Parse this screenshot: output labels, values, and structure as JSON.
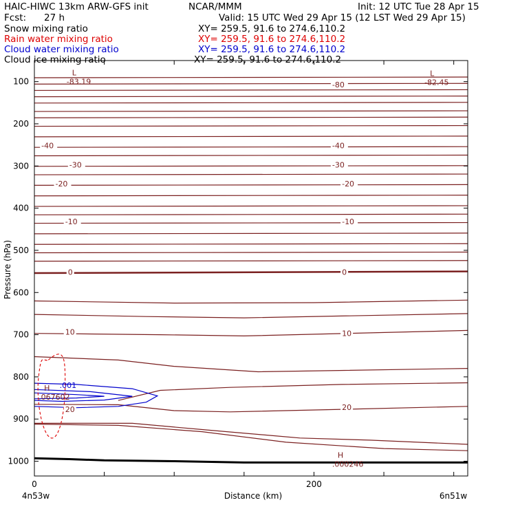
{
  "header": {
    "model": "HAIC-HIWC 13km ARW-GFS init",
    "center": "NCAR/MMM",
    "init": "Init: 12 UTC Tue 28 Apr 15",
    "fcst_label": "Fcst:",
    "fcst_value": "27 h",
    "valid": "Valid: 15 UTC Wed 29 Apr 15 (12 LST Wed 29 Apr 15)"
  },
  "fields": [
    {
      "name": "Snow mixing ratio",
      "xy": "XY= 259.5, 91.6 to 274.6,110.2",
      "color": "#000000"
    },
    {
      "name": "Rain water mixing ratio",
      "xy": "XY= 259.5, 91.6 to 274.6,110.2",
      "color": "#dd0000"
    },
    {
      "name": "Cloud water mixing ratio",
      "xy": "XY= 259.5, 91.6 to 274.6,110.2",
      "color": "#0000cc"
    },
    {
      "name": "Cloud ice mixing ratio",
      "xy": "XY= 259.5, 91.6 to 274.6,110.2",
      "color": "#000000"
    }
  ],
  "chart_data": {
    "type": "line",
    "ylabel": "Pressure (hPa)",
    "xlabel": "Distance (km)",
    "x_ticks": [
      0,
      200
    ],
    "y_ticks": [
      100,
      200,
      300,
      400,
      500,
      600,
      700,
      800,
      900,
      1000
    ],
    "xlim": [
      0,
      310
    ],
    "ylim": [
      50,
      1035
    ],
    "y_reversed": true,
    "x_start_label": "4n53w",
    "x_end_label": "6n51w",
    "temperature_color": "#7a1f1f",
    "temperature_labels": [
      {
        "text": "-80",
        "x": 213,
        "p": 110
      },
      {
        "text": "-40",
        "x": 5,
        "p": 255
      },
      {
        "text": "-40",
        "x": 213,
        "p": 255
      },
      {
        "text": "-30",
        "x": 25,
        "p": 300
      },
      {
        "text": "-30",
        "x": 213,
        "p": 300
      },
      {
        "text": "-20",
        "x": 15,
        "p": 345
      },
      {
        "text": "-20",
        "x": 220,
        "p": 345
      },
      {
        "text": "-10",
        "x": 22,
        "p": 435
      },
      {
        "text": "-10",
        "x": 220,
        "p": 435
      },
      {
        "text": "0",
        "x": 24,
        "p": 555
      },
      {
        "text": "0",
        "x": 220,
        "p": 555
      },
      {
        "text": "10",
        "x": 22,
        "p": 697
      },
      {
        "text": "10",
        "x": 220,
        "p": 700
      },
      {
        "text": "20",
        "x": 22,
        "p": 880
      },
      {
        "text": "20",
        "x": 220,
        "p": 875
      }
    ],
    "extrema": [
      {
        "symbol": "L",
        "value": "-83.19",
        "x": 25,
        "p": 85
      },
      {
        "symbol": "L",
        "value": "-82.45",
        "x": 281,
        "p": 87
      },
      {
        "symbol": "H",
        "value": ".000246",
        "x": 215,
        "p": 992
      },
      {
        "symbol": "H",
        "value": ".067602",
        "x": 5,
        "p": 833
      }
    ],
    "cloud_water_label": ".001",
    "series": [
      {
        "name": "Cloud water mixing ratio",
        "color": "#0000cc",
        "level": ".001"
      },
      {
        "name": "Rain water mixing ratio",
        "color": "#dd0000"
      }
    ]
  }
}
